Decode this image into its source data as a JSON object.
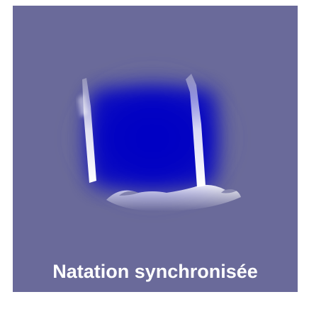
{
  "tile": {
    "label": "Natation synchronisée"
  }
}
